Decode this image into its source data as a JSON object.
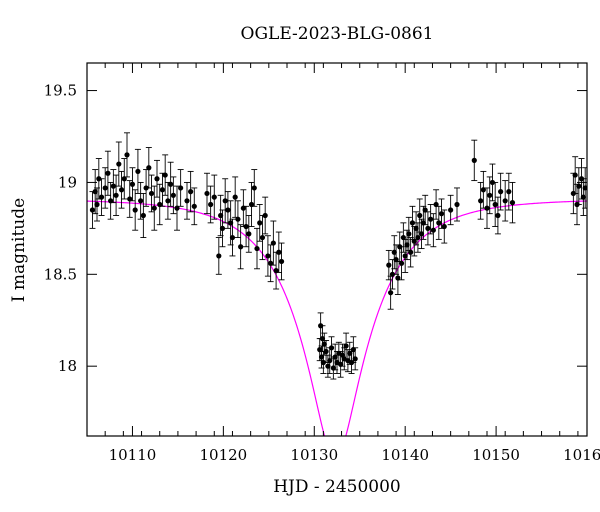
{
  "chart_data": {
    "type": "scatter",
    "title": "OGLE-2023-BLG-0861",
    "xlabel": "HJD - 2450000",
    "ylabel": "I magnitude",
    "xlim": [
      10105,
      10160
    ],
    "ylim": [
      19.65,
      17.62
    ],
    "y_inverted": true,
    "x_ticks": [
      10110,
      10120,
      10130,
      10140,
      10150,
      10160
    ],
    "x_tick_labels": [
      "10110",
      "10120",
      "10130",
      "10140",
      "10150",
      "10160"
    ],
    "y_ticks": [
      18,
      18.5,
      19,
      19.5
    ],
    "y_tick_labels": [
      "18",
      "18.5",
      "19",
      "19.5"
    ],
    "grid": false,
    "legend": "none",
    "colors": {
      "points": "#000000",
      "model": "#ff00ff",
      "axes": "#000000"
    },
    "series": [
      {
        "kind": "observations",
        "points": [
          [
            10105.6,
            18.85,
            0.1
          ],
          [
            10105.9,
            18.95,
            0.12
          ],
          [
            10106.1,
            18.88,
            0.09
          ],
          [
            10106.3,
            19.02,
            0.11
          ],
          [
            10106.6,
            18.92,
            0.1
          ],
          [
            10107.0,
            18.97,
            0.11
          ],
          [
            10107.3,
            19.05,
            0.12
          ],
          [
            10107.6,
            18.9,
            0.1
          ],
          [
            10107.9,
            18.98,
            0.09
          ],
          [
            10108.2,
            18.93,
            0.11
          ],
          [
            10108.5,
            19.1,
            0.12
          ],
          [
            10108.8,
            18.96,
            0.1
          ],
          [
            10109.1,
            19.02,
            0.11
          ],
          [
            10109.4,
            19.15,
            0.12
          ],
          [
            10109.7,
            18.91,
            0.1
          ],
          [
            10110.0,
            18.99,
            0.09
          ],
          [
            10110.3,
            18.85,
            0.11
          ],
          [
            10110.6,
            19.06,
            0.12
          ],
          [
            10110.9,
            18.9,
            0.1
          ],
          [
            10111.2,
            18.82,
            0.12
          ],
          [
            10111.5,
            18.97,
            0.1
          ],
          [
            10111.8,
            19.08,
            0.11
          ],
          [
            10112.1,
            18.94,
            0.1
          ],
          [
            10112.4,
            18.86,
            0.12
          ],
          [
            10112.7,
            19.02,
            0.1
          ],
          [
            10113.0,
            18.88,
            0.11
          ],
          [
            10113.3,
            18.96,
            0.09
          ],
          [
            10113.6,
            19.04,
            0.11
          ],
          [
            10113.9,
            18.9,
            0.1
          ],
          [
            10114.2,
            18.99,
            0.12
          ],
          [
            10114.5,
            18.93,
            0.1
          ],
          [
            10114.9,
            18.86,
            0.12
          ],
          [
            10115.3,
            18.97,
            0.1
          ],
          [
            10116.0,
            18.9,
            0.1
          ],
          [
            10116.4,
            18.95,
            0.11
          ],
          [
            10116.8,
            18.87,
            0.1
          ],
          [
            10118.2,
            18.94,
            0.11
          ],
          [
            10118.6,
            18.88,
            0.1
          ],
          [
            10119.0,
            18.92,
            0.12
          ],
          [
            10119.5,
            18.6,
            0.1
          ],
          [
            10119.7,
            18.82,
            0.11
          ],
          [
            10119.9,
            18.75,
            0.1
          ],
          [
            10120.2,
            18.9,
            0.12
          ],
          [
            10120.5,
            18.85,
            0.1
          ],
          [
            10120.8,
            18.78,
            0.12
          ],
          [
            10121.0,
            18.7,
            0.1
          ],
          [
            10121.3,
            18.92,
            0.11
          ],
          [
            10121.6,
            18.8,
            0.1
          ],
          [
            10121.9,
            18.65,
            0.12
          ],
          [
            10122.2,
            18.86,
            0.1
          ],
          [
            10122.5,
            18.76,
            0.11
          ],
          [
            10122.8,
            18.72,
            0.1
          ],
          [
            10123.1,
            18.88,
            0.12
          ],
          [
            10123.4,
            18.97,
            0.1
          ],
          [
            10123.7,
            18.64,
            0.11
          ],
          [
            10124.0,
            18.78,
            0.1
          ],
          [
            10124.3,
            18.7,
            0.12
          ],
          [
            10124.6,
            18.82,
            0.1
          ],
          [
            10124.9,
            18.6,
            0.11
          ],
          [
            10125.2,
            18.56,
            0.1
          ],
          [
            10125.5,
            18.67,
            0.12
          ],
          [
            10125.8,
            18.52,
            0.1
          ],
          [
            10126.1,
            18.62,
            0.11
          ],
          [
            10126.4,
            18.57,
            0.1
          ],
          [
            10130.6,
            18.09,
            0.06
          ],
          [
            10130.7,
            18.22,
            0.07
          ],
          [
            10130.8,
            18.05,
            0.06
          ],
          [
            10130.9,
            18.15,
            0.07
          ],
          [
            10131.0,
            18.02,
            0.06
          ],
          [
            10131.1,
            18.12,
            0.06
          ],
          [
            10131.3,
            18.08,
            0.06
          ],
          [
            10131.5,
            18.0,
            0.06
          ],
          [
            10131.7,
            18.03,
            0.07
          ],
          [
            10131.9,
            18.1,
            0.06
          ],
          [
            10132.1,
            17.99,
            0.06
          ],
          [
            10132.3,
            18.05,
            0.07
          ],
          [
            10132.5,
            18.02,
            0.06
          ],
          [
            10132.7,
            18.07,
            0.06
          ],
          [
            10132.9,
            18.01,
            0.07
          ],
          [
            10133.1,
            18.06,
            0.06
          ],
          [
            10133.3,
            18.04,
            0.06
          ],
          [
            10133.5,
            18.11,
            0.07
          ],
          [
            10133.7,
            18.03,
            0.06
          ],
          [
            10133.9,
            18.07,
            0.06
          ],
          [
            10134.1,
            18.02,
            0.06
          ],
          [
            10134.3,
            18.09,
            0.07
          ],
          [
            10134.5,
            18.04,
            0.06
          ],
          [
            10138.2,
            18.55,
            0.08
          ],
          [
            10138.4,
            18.4,
            0.09
          ],
          [
            10138.6,
            18.5,
            0.08
          ],
          [
            10138.8,
            18.62,
            0.09
          ],
          [
            10139.0,
            18.58,
            0.08
          ],
          [
            10139.2,
            18.48,
            0.09
          ],
          [
            10139.4,
            18.65,
            0.08
          ],
          [
            10139.6,
            18.56,
            0.09
          ],
          [
            10139.8,
            18.7,
            0.08
          ],
          [
            10140.0,
            18.6,
            0.09
          ],
          [
            10140.2,
            18.66,
            0.08
          ],
          [
            10140.4,
            18.72,
            0.09
          ],
          [
            10140.6,
            18.62,
            0.08
          ],
          [
            10140.8,
            18.78,
            0.09
          ],
          [
            10141.0,
            18.68,
            0.08
          ],
          [
            10141.2,
            18.75,
            0.09
          ],
          [
            10141.4,
            18.7,
            0.08
          ],
          [
            10141.6,
            18.82,
            0.09
          ],
          [
            10141.8,
            18.72,
            0.08
          ],
          [
            10142.0,
            18.78,
            0.09
          ],
          [
            10142.2,
            18.85,
            0.08
          ],
          [
            10142.5,
            18.75,
            0.09
          ],
          [
            10142.8,
            18.8,
            0.08
          ],
          [
            10143.1,
            18.74,
            0.09
          ],
          [
            10143.4,
            18.88,
            0.08
          ],
          [
            10143.7,
            18.78,
            0.09
          ],
          [
            10144.0,
            18.83,
            0.08
          ],
          [
            10144.3,
            18.76,
            0.09
          ],
          [
            10145.0,
            18.85,
            0.08
          ],
          [
            10145.7,
            18.88,
            0.09
          ],
          [
            10147.6,
            19.12,
            0.11
          ],
          [
            10148.3,
            18.9,
            0.1
          ],
          [
            10148.6,
            18.96,
            0.1
          ],
          [
            10149.0,
            18.86,
            0.11
          ],
          [
            10149.3,
            18.93,
            0.1
          ],
          [
            10149.6,
            19.0,
            0.1
          ],
          [
            10149.9,
            18.88,
            0.12
          ],
          [
            10150.2,
            18.82,
            0.1
          ],
          [
            10150.5,
            18.95,
            0.1
          ],
          [
            10151.0,
            18.9,
            0.11
          ],
          [
            10151.4,
            18.95,
            0.1
          ],
          [
            10151.8,
            18.89,
            0.11
          ],
          [
            10158.5,
            18.94,
            0.11
          ],
          [
            10158.7,
            19.04,
            0.1
          ],
          [
            10158.9,
            18.88,
            0.11
          ],
          [
            10159.1,
            18.98,
            0.1
          ],
          [
            10159.4,
            19.02,
            0.11
          ],
          [
            10159.6,
            18.92,
            0.1
          ],
          [
            10159.8,
            18.97,
            0.11
          ]
        ]
      },
      {
        "kind": "model",
        "t0": 10132.3,
        "tE": 8.0,
        "u0": 0.28,
        "baseline_mag": 18.91
      }
    ]
  }
}
